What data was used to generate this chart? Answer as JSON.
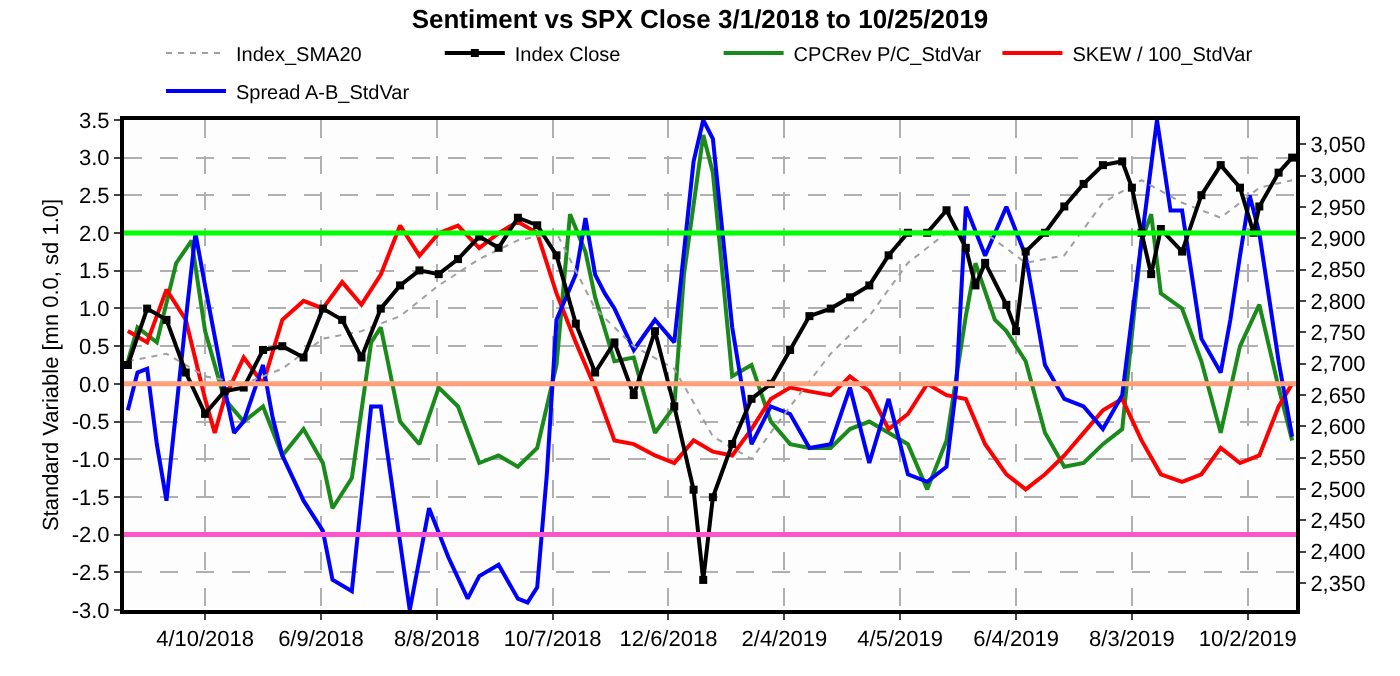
{
  "chart_data": {
    "type": "line",
    "title": "Sentiment vs SPX Close 3/1/2018 to 10/25/2019",
    "ylabel": "Standard Variable [mn 0.0, sd 1.0]",
    "xlim": [
      "2018-02-27",
      "2019-10-27"
    ],
    "ylim": [
      -3,
      3.5
    ],
    "y2lim": [
      2307,
      3089
    ],
    "xticks": [
      {
        "value": "2018-04-10",
        "label": "4/10/2018"
      },
      {
        "value": "2018-06-09",
        "label": "6/9/2018"
      },
      {
        "value": "2018-08-08",
        "label": "8/8/2018"
      },
      {
        "value": "2018-10-07",
        "label": "10/7/2018"
      },
      {
        "value": "2018-12-06",
        "label": "12/6/2018"
      },
      {
        "value": "2019-02-04",
        "label": "2/4/2019"
      },
      {
        "value": "2019-04-05",
        "label": "4/5/2019"
      },
      {
        "value": "2019-06-04",
        "label": "6/4/2019"
      },
      {
        "value": "2019-08-03",
        "label": "8/3/2019"
      },
      {
        "value": "2019-10-02",
        "label": "10/2/2019"
      }
    ],
    "yticks": [
      {
        "value": -3,
        "label": "-3.0"
      },
      {
        "value": -2.5,
        "label": "-2.5"
      },
      {
        "value": -2,
        "label": "-2.0"
      },
      {
        "value": -1.5,
        "label": "-1.5"
      },
      {
        "value": -1,
        "label": "-1.0"
      },
      {
        "value": -0.5,
        "label": "-0.5"
      },
      {
        "value": 0,
        "label": "0.0"
      },
      {
        "value": 0.5,
        "label": "0.5"
      },
      {
        "value": 1,
        "label": "1.0"
      },
      {
        "value": 1.5,
        "label": "1.5"
      },
      {
        "value": 2,
        "label": "2.0"
      },
      {
        "value": 2.5,
        "label": "2.5"
      },
      {
        "value": 3,
        "label": "3.0"
      },
      {
        "value": 3.5,
        "label": "3.5"
      }
    ],
    "y2ticks": [
      {
        "value": 2350,
        "label": "2,350"
      },
      {
        "value": 2400,
        "label": "2,400"
      },
      {
        "value": 2450,
        "label": "2,450"
      },
      {
        "value": 2500,
        "label": "2,500"
      },
      {
        "value": 2550,
        "label": "2,550"
      },
      {
        "value": 2600,
        "label": "2,600"
      },
      {
        "value": 2650,
        "label": "2,650"
      },
      {
        "value": 2700,
        "label": "2,700"
      },
      {
        "value": 2750,
        "label": "2,750"
      },
      {
        "value": 2800,
        "label": "2,800"
      },
      {
        "value": 2850,
        "label": "2,850"
      },
      {
        "value": 2900,
        "label": "2,900"
      },
      {
        "value": 2950,
        "label": "2,950"
      },
      {
        "value": 3000,
        "label": "3,000"
      },
      {
        "value": 3050,
        "label": "3,050"
      }
    ],
    "grid": true,
    "legend": "top",
    "ref_lines": [
      {
        "axis": "y",
        "value": 2,
        "color": "#00ff00"
      },
      {
        "axis": "y",
        "value": 0,
        "color": "#ffa07a"
      },
      {
        "axis": "y",
        "value": -2,
        "color": "#ff55cc"
      }
    ],
    "series": [
      {
        "name": "Index_SMA20",
        "color": "#a0a0a0",
        "axis": "y2",
        "line_style": "dotted",
        "marker": "none",
        "x": [
          "2018-03-01",
          "2018-03-21",
          "2018-04-10",
          "2018-04-30",
          "2018-05-20",
          "2018-06-10",
          "2018-06-30",
          "2018-07-20",
          "2018-08-09",
          "2018-08-30",
          "2018-09-19",
          "2018-10-09",
          "2018-10-29",
          "2018-11-18",
          "2018-12-09",
          "2018-12-29",
          "2019-01-18",
          "2019-02-07",
          "2019-02-28",
          "2019-03-20",
          "2019-04-09",
          "2019-04-29",
          "2019-05-19",
          "2019-06-09",
          "2019-06-29",
          "2019-07-19",
          "2019-08-08",
          "2019-08-29",
          "2019-09-18",
          "2019-10-08",
          "2019-10-25"
        ],
        "values": [
          2704,
          2716,
          2680,
          2668,
          2692,
          2740,
          2752,
          2776,
          2825,
          2867,
          2897,
          2909,
          2788,
          2728,
          2692,
          2584,
          2548,
          2632,
          2716,
          2776,
          2861,
          2909,
          2909,
          2861,
          2873,
          2957,
          2993,
          2957,
          2933,
          2981,
          2993
        ]
      },
      {
        "name": "Index Close",
        "color": "#000000",
        "axis": "y2",
        "line_style": "solid",
        "marker": "square",
        "x": [
          "2018-03-01",
          "2018-03-11",
          "2018-03-21",
          "2018-03-31",
          "2018-04-10",
          "2018-04-20",
          "2018-04-30",
          "2018-05-10",
          "2018-05-20",
          "2018-05-31",
          "2018-06-10",
          "2018-06-20",
          "2018-06-30",
          "2018-07-10",
          "2018-07-20",
          "2018-07-30",
          "2018-08-09",
          "2018-08-19",
          "2018-08-30",
          "2018-09-09",
          "2018-09-19",
          "2018-09-29",
          "2018-10-09",
          "2018-10-19",
          "2018-10-29",
          "2018-11-08",
          "2018-11-18",
          "2018-11-29",
          "2018-12-09",
          "2018-12-19",
          "2018-12-24",
          "2018-12-29",
          "2019-01-08",
          "2019-01-18",
          "2019-01-28",
          "2019-02-07",
          "2019-02-17",
          "2019-02-28",
          "2019-03-10",
          "2019-03-20",
          "2019-03-30",
          "2019-04-09",
          "2019-04-19",
          "2019-04-29",
          "2019-05-09",
          "2019-05-14",
          "2019-05-19",
          "2019-05-30",
          "2019-06-04",
          "2019-06-09",
          "2019-06-19",
          "2019-06-29",
          "2019-07-09",
          "2019-07-19",
          "2019-07-29",
          "2019-08-03",
          "2019-08-08",
          "2019-08-13",
          "2019-08-18",
          "2019-08-29",
          "2019-09-08",
          "2019-09-18",
          "2019-09-28",
          "2019-10-05",
          "2019-10-08",
          "2019-10-18",
          "2019-10-25"
        ],
        "values": [
          2698,
          2788,
          2770,
          2686,
          2620,
          2656,
          2662,
          2722,
          2728,
          2710,
          2788,
          2770,
          2710,
          2788,
          2825,
          2849,
          2843,
          2867,
          2903,
          2885,
          2933,
          2921,
          2873,
          2764,
          2686,
          2734,
          2650,
          2752,
          2632,
          2499,
          2355,
          2487,
          2572,
          2644,
          2668,
          2722,
          2776,
          2788,
          2806,
          2825,
          2873,
          2909,
          2909,
          2945,
          2885,
          2825,
          2861,
          2794,
          2752,
          2879,
          2909,
          2951,
          2987,
          3017,
          3023,
          2981,
          2909,
          2843,
          2915,
          2879,
          2969,
          3017,
          2981,
          2909,
          2951,
          3005,
          3029
        ]
      },
      {
        "name": "CPCRev P/C_StdVar",
        "color": "#1a8a1a",
        "line_style": "solid",
        "marker": "none",
        "x": [
          "2018-03-01",
          "2018-03-06",
          "2018-03-16",
          "2018-03-26",
          "2018-04-03",
          "2018-04-10",
          "2018-04-20",
          "2018-04-30",
          "2018-05-10",
          "2018-05-20",
          "2018-05-31",
          "2018-06-10",
          "2018-06-15",
          "2018-06-25",
          "2018-07-05",
          "2018-07-10",
          "2018-07-20",
          "2018-07-30",
          "2018-08-09",
          "2018-08-19",
          "2018-08-30",
          "2018-09-09",
          "2018-09-19",
          "2018-09-29",
          "2018-10-09",
          "2018-10-16",
          "2018-10-24",
          "2018-10-29",
          "2018-11-08",
          "2018-11-18",
          "2018-11-29",
          "2018-12-09",
          "2018-12-14",
          "2018-12-24",
          "2018-12-29",
          "2019-01-08",
          "2019-01-18",
          "2019-01-28",
          "2019-02-07",
          "2019-02-17",
          "2019-02-28",
          "2019-03-10",
          "2019-03-20",
          "2019-03-30",
          "2019-04-09",
          "2019-04-19",
          "2019-04-29",
          "2019-05-09",
          "2019-05-14",
          "2019-05-24",
          "2019-05-30",
          "2019-06-09",
          "2019-06-19",
          "2019-06-29",
          "2019-07-09",
          "2019-07-19",
          "2019-07-29",
          "2019-08-08",
          "2019-08-13",
          "2019-08-18",
          "2019-08-29",
          "2019-09-08",
          "2019-09-18",
          "2019-09-28",
          "2019-10-08",
          "2019-10-18",
          "2019-10-25"
        ],
        "values": [
          0.3,
          0.75,
          0.55,
          1.6,
          1.9,
          0.7,
          -0.2,
          -0.5,
          -0.3,
          -0.95,
          -0.6,
          -1.05,
          -1.65,
          -1.25,
          0.55,
          0.75,
          -0.5,
          -0.8,
          -0.05,
          -0.3,
          -1.05,
          -0.95,
          -1.1,
          -0.85,
          0.25,
          2.25,
          1.75,
          1.15,
          0.3,
          0.35,
          -0.65,
          -0.3,
          1.45,
          3.3,
          2.8,
          0.1,
          0.25,
          -0.5,
          -0.8,
          -0.85,
          -0.85,
          -0.6,
          -0.5,
          -0.65,
          -0.8,
          -1.4,
          -0.75,
          0.9,
          1.6,
          0.85,
          0.7,
          0.3,
          -0.65,
          -1.1,
          -1.05,
          -0.8,
          -0.6,
          1.9,
          2.25,
          1.2,
          1.0,
          0.3,
          -0.65,
          0.5,
          1.05,
          -0.05,
          -0.75
        ]
      },
      {
        "name": "SKEW / 100_StdVar",
        "color": "#ff0000",
        "line_style": "solid",
        "marker": "none",
        "x": [
          "2018-03-01",
          "2018-03-11",
          "2018-03-21",
          "2018-03-31",
          "2018-04-10",
          "2018-04-15",
          "2018-04-20",
          "2018-04-30",
          "2018-05-10",
          "2018-05-20",
          "2018-05-31",
          "2018-06-10",
          "2018-06-20",
          "2018-06-30",
          "2018-07-10",
          "2018-07-20",
          "2018-07-30",
          "2018-08-09",
          "2018-08-19",
          "2018-08-30",
          "2018-09-09",
          "2018-09-19",
          "2018-09-29",
          "2018-10-09",
          "2018-10-19",
          "2018-10-29",
          "2018-11-08",
          "2018-11-18",
          "2018-11-29",
          "2018-12-09",
          "2018-12-19",
          "2018-12-29",
          "2019-01-08",
          "2019-01-18",
          "2019-01-28",
          "2019-02-07",
          "2019-02-17",
          "2019-02-28",
          "2019-03-10",
          "2019-03-20",
          "2019-03-30",
          "2019-04-09",
          "2019-04-19",
          "2019-04-29",
          "2019-05-09",
          "2019-05-19",
          "2019-05-30",
          "2019-06-09",
          "2019-06-19",
          "2019-06-29",
          "2019-07-09",
          "2019-07-19",
          "2019-07-29",
          "2019-08-08",
          "2019-08-18",
          "2019-08-29",
          "2019-09-08",
          "2019-09-18",
          "2019-09-28",
          "2019-10-08",
          "2019-10-18",
          "2019-10-25"
        ],
        "values": [
          0.7,
          0.55,
          1.25,
          0.85,
          -0.2,
          -0.65,
          -0.2,
          0.35,
          0.0,
          0.85,
          1.1,
          1.0,
          1.35,
          1.05,
          1.45,
          2.1,
          1.7,
          2.0,
          2.1,
          1.8,
          2.0,
          2.15,
          2.0,
          1.2,
          0.55,
          -0.05,
          -0.75,
          -0.8,
          -0.95,
          -1.05,
          -0.75,
          -0.9,
          -0.95,
          -0.6,
          -0.2,
          -0.05,
          -0.1,
          -0.15,
          0.1,
          -0.1,
          -0.6,
          -0.4,
          0.0,
          -0.15,
          -0.2,
          -0.8,
          -1.2,
          -1.4,
          -1.2,
          -0.95,
          -0.65,
          -0.35,
          -0.2,
          -0.75,
          -1.2,
          -1.3,
          -1.2,
          -0.85,
          -1.05,
          -0.95,
          -0.3,
          0.0
        ]
      },
      {
        "name": "Spread A-B_StdVar",
        "color": "#0000ff",
        "line_style": "solid",
        "marker": "none",
        "x": [
          "2018-03-01",
          "2018-03-06",
          "2018-03-11",
          "2018-03-16",
          "2018-03-21",
          "2018-03-31",
          "2018-04-05",
          "2018-04-10",
          "2018-04-20",
          "2018-04-25",
          "2018-04-30",
          "2018-05-10",
          "2018-05-15",
          "2018-05-20",
          "2018-05-31",
          "2018-06-10",
          "2018-06-15",
          "2018-06-25",
          "2018-07-05",
          "2018-07-10",
          "2018-07-20",
          "2018-07-25",
          "2018-08-04",
          "2018-08-14",
          "2018-08-24",
          "2018-08-30",
          "2018-09-09",
          "2018-09-19",
          "2018-09-24",
          "2018-09-29",
          "2018-10-04",
          "2018-10-09",
          "2018-10-19",
          "2018-10-24",
          "2018-10-29",
          "2018-11-03",
          "2018-11-08",
          "2018-11-18",
          "2018-11-29",
          "2018-12-09",
          "2018-12-19",
          "2018-12-24",
          "2018-12-29",
          "2019-01-08",
          "2019-01-18",
          "2019-01-28",
          "2019-02-07",
          "2019-02-17",
          "2019-02-28",
          "2019-03-10",
          "2019-03-20",
          "2019-03-30",
          "2019-04-09",
          "2019-04-19",
          "2019-04-29",
          "2019-05-04",
          "2019-05-09",
          "2019-05-19",
          "2019-05-30",
          "2019-06-09",
          "2019-06-19",
          "2019-06-29",
          "2019-07-09",
          "2019-07-19",
          "2019-07-29",
          "2019-08-08",
          "2019-08-16",
          "2019-08-23",
          "2019-08-29",
          "2019-09-08",
          "2019-09-18",
          "2019-09-23",
          "2019-09-28",
          "2019-10-03",
          "2019-10-08",
          "2019-10-18",
          "2019-10-25"
        ],
        "values": [
          -0.35,
          0.15,
          0.2,
          -0.8,
          -1.55,
          0.85,
          2.0,
          1.3,
          -0.05,
          -0.65,
          -0.5,
          0.25,
          -0.45,
          -0.95,
          -1.55,
          -1.95,
          -2.6,
          -2.75,
          -0.3,
          -0.3,
          -2.1,
          -3.0,
          -1.65,
          -2.3,
          -2.85,
          -2.55,
          -2.4,
          -2.85,
          -2.9,
          -2.7,
          -1.2,
          0.85,
          1.45,
          2.2,
          1.45,
          1.2,
          1.0,
          0.45,
          0.85,
          0.55,
          2.95,
          3.5,
          3.25,
          0.75,
          -0.8,
          -0.3,
          -0.4,
          -0.85,
          -0.8,
          -0.05,
          -1.05,
          -0.2,
          -1.2,
          -1.3,
          -1.1,
          -0.05,
          2.35,
          1.7,
          2.35,
          1.7,
          0.25,
          -0.2,
          -0.3,
          -0.6,
          -0.15,
          1.9,
          3.5,
          2.3,
          2.3,
          0.6,
          0.15,
          0.85,
          1.7,
          2.5,
          2.0,
          0.3,
          -0.7
        ]
      }
    ]
  }
}
